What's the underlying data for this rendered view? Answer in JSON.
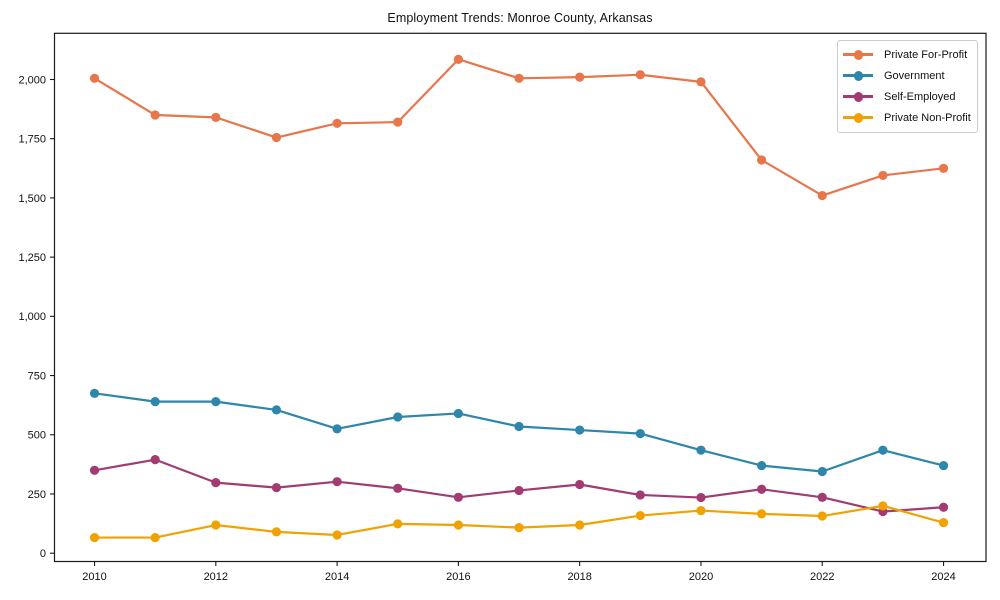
{
  "chart_data": {
    "type": "line",
    "title": "Employment Trends: Monroe County, Arkansas",
    "xlabel": "",
    "ylabel": "",
    "x": [
      2010,
      2011,
      2012,
      2013,
      2014,
      2015,
      2016,
      2017,
      2018,
      2019,
      2020,
      2021,
      2022,
      2023,
      2024
    ],
    "series": [
      {
        "name": "Private For-Profit",
        "color": "#E8764B",
        "values": [
          2005,
          1850,
          1840,
          1755,
          1815,
          1820,
          2085,
          2005,
          2010,
          2020,
          1990,
          1660,
          1510,
          1595,
          1625
        ]
      },
      {
        "name": "Government",
        "color": "#2E86AB",
        "values": [
          675,
          640,
          640,
          605,
          525,
          575,
          590,
          535,
          520,
          505,
          435,
          370,
          345,
          435,
          370
        ]
      },
      {
        "name": "Self-Employed",
        "color": "#A23B72",
        "values": [
          350,
          395,
          298,
          277,
          302,
          274,
          236,
          265,
          290,
          246,
          235,
          270,
          236,
          176,
          194
        ]
      },
      {
        "name": "Private Non-Profit",
        "color": "#F0A202",
        "values": [
          66,
          66,
          119,
          90,
          77,
          124,
          119,
          108,
          119,
          159,
          180,
          166,
          157,
          200,
          129
        ]
      }
    ],
    "xlim": [
      2009.34,
      2024.7
    ],
    "ylim": [
      -35,
      2195
    ],
    "xticks": [
      2010,
      2012,
      2014,
      2016,
      2018,
      2020,
      2022,
      2024
    ],
    "yticks": [
      0,
      250,
      500,
      750,
      1000,
      1250,
      1500,
      1750,
      2000
    ],
    "ytick_labels": [
      "0",
      "250",
      "500",
      "750",
      "1,000",
      "1,250",
      "1,500",
      "1,750",
      "2,000"
    ],
    "grid": false,
    "legend_position": "upper-right",
    "axis_color": "#1a1a1a"
  }
}
